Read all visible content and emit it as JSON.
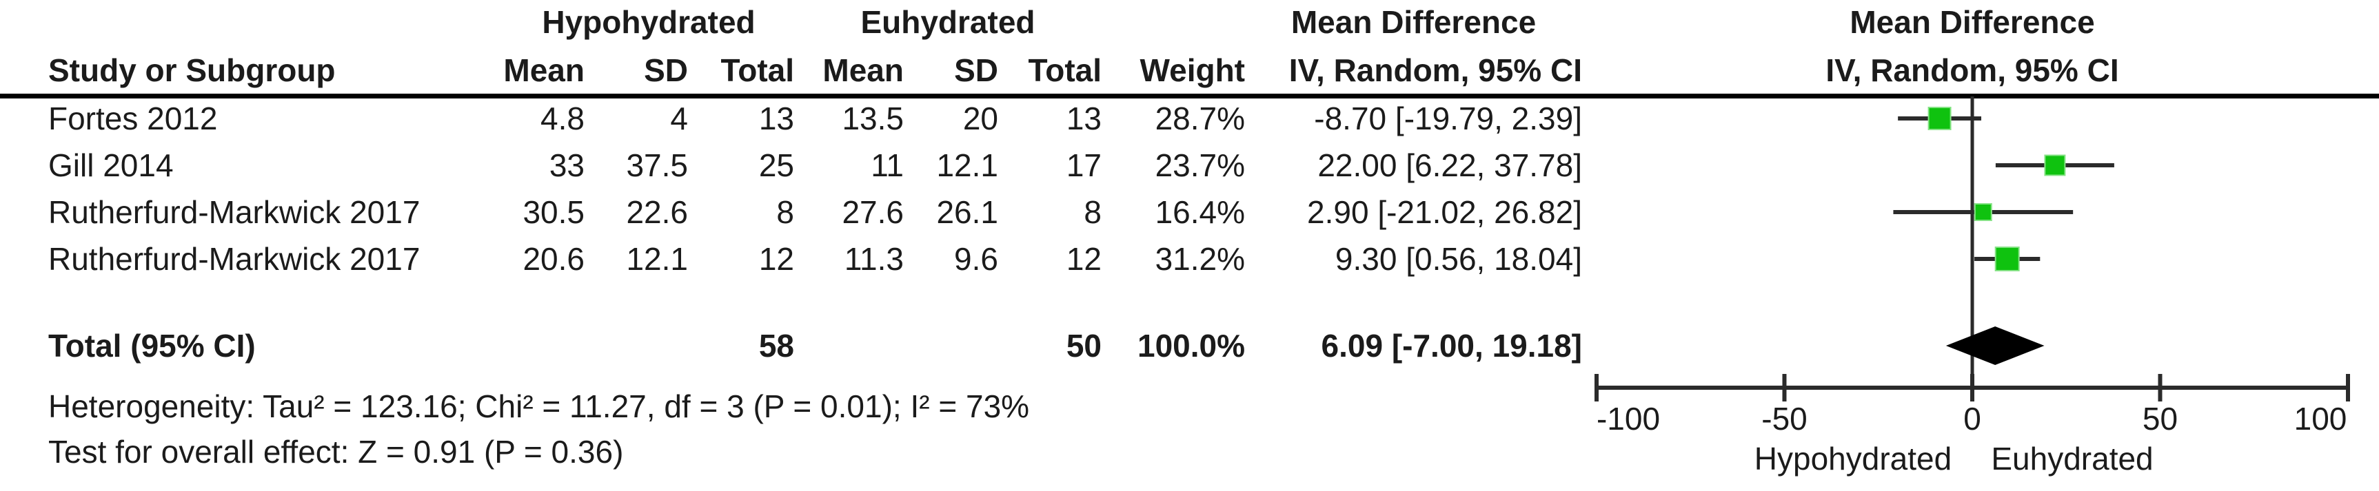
{
  "table": {
    "group_headers": {
      "hypohydrated": "Hypohydrated",
      "euhydrated": "Euhydrated",
      "mean_difference": "Mean Difference",
      "plot_mean_difference": "Mean Difference"
    },
    "col_headers": {
      "study": "Study or Subgroup",
      "h_mean": "Mean",
      "h_sd": "SD",
      "h_total": "Total",
      "e_mean": "Mean",
      "e_sd": "SD",
      "e_total": "Total",
      "weight": "Weight",
      "ci": "IV, Random, 95% CI",
      "plot_ci": "IV, Random, 95% CI"
    },
    "rows": [
      {
        "study": "Fortes 2012",
        "h_mean": "4.8",
        "h_sd": "4",
        "h_total": "13",
        "e_mean": "13.5",
        "e_sd": "20",
        "e_total": "13",
        "weight": "28.7%",
        "md_ci": "-8.70 [-19.79, 2.39]"
      },
      {
        "study": "Gill 2014",
        "h_mean": "33",
        "h_sd": "37.5",
        "h_total": "25",
        "e_mean": "11",
        "e_sd": "12.1",
        "e_total": "17",
        "weight": "23.7%",
        "md_ci": "22.00 [6.22, 37.78]"
      },
      {
        "study": "Rutherfurd-Markwick 2017",
        "h_mean": "30.5",
        "h_sd": "22.6",
        "h_total": "8",
        "e_mean": "27.6",
        "e_sd": "26.1",
        "e_total": "8",
        "weight": "16.4%",
        "md_ci": "2.90 [-21.02, 26.82]"
      },
      {
        "study": "Rutherfurd-Markwick 2017",
        "h_mean": "20.6",
        "h_sd": "12.1",
        "h_total": "12",
        "e_mean": "11.3",
        "e_sd": "9.6",
        "e_total": "12",
        "weight": "31.2%",
        "md_ci": "9.30 [0.56, 18.04]"
      }
    ],
    "total_row": {
      "label": "Total (95% CI)",
      "h_total": "58",
      "e_total": "50",
      "weight": "100.0%",
      "md_ci": "6.09 [-7.00, 19.18]"
    },
    "footer": {
      "heterogeneity": "Heterogeneity: Tau² = 123.16; Chi² = 11.27, df = 3 (P = 0.01); I² = 73%",
      "overall_effect": "Test for overall effect: Z = 0.91 (P = 0.36)"
    }
  },
  "chart_data": {
    "type": "forest",
    "effect_measure": "Mean Difference, IV, Random, 95% CI",
    "xlim": [
      -100,
      100
    ],
    "axis_ticks": [
      -100,
      -50,
      0,
      50,
      100
    ],
    "xlabel_left": "Hypohydrated",
    "xlabel_right": "Euhydrated",
    "studies": [
      {
        "name": "Fortes 2012",
        "md": -8.7,
        "ci_low": -19.79,
        "ci_high": 2.39,
        "weight_pct": 28.7
      },
      {
        "name": "Gill 2014",
        "md": 22.0,
        "ci_low": 6.22,
        "ci_high": 37.78,
        "weight_pct": 23.7
      },
      {
        "name": "Rutherfurd-Markwick 2017",
        "md": 2.9,
        "ci_low": -21.02,
        "ci_high": 26.82,
        "weight_pct": 16.4
      },
      {
        "name": "Rutherfurd-Markwick 2017",
        "md": 9.3,
        "ci_low": 0.56,
        "ci_high": 18.04,
        "weight_pct": 31.2
      }
    ],
    "total": {
      "label": "Total (95% CI)",
      "md": 6.09,
      "ci_low": -7.0,
      "ci_high": 19.18,
      "weight_pct": 100.0
    },
    "marker_color": "#0fc20f",
    "marker_edge_color": "#86e386",
    "line_color": "#2b2b2b",
    "diamond_color": "#000000"
  }
}
